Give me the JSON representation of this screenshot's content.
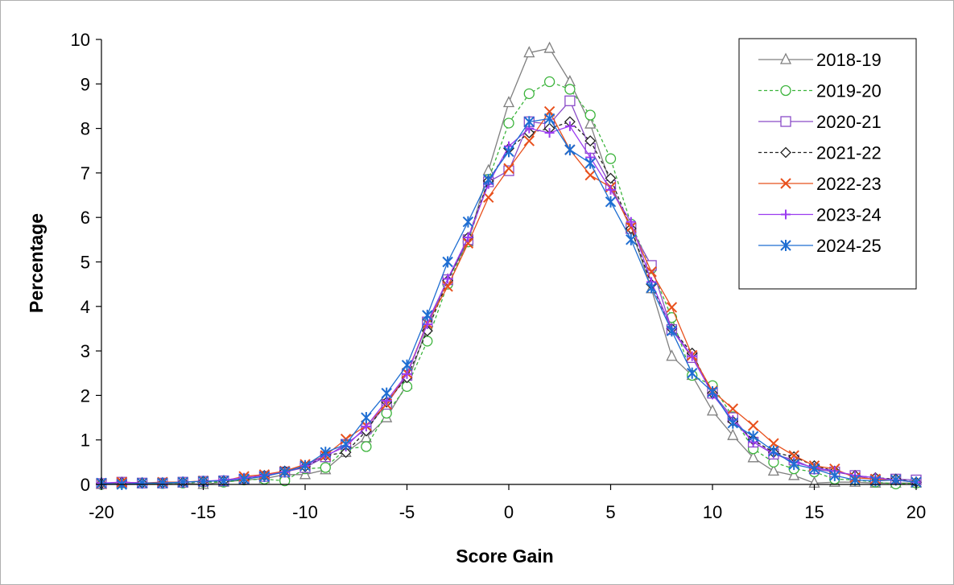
{
  "chart_data": {
    "type": "line",
    "title": "",
    "xlabel": "Score Gain",
    "ylabel": "Percentage",
    "xlim": [
      -20,
      20
    ],
    "ylim": [
      0,
      10
    ],
    "x_ticks": [
      -20,
      -15,
      -10,
      -5,
      0,
      5,
      10,
      15,
      20
    ],
    "y_ticks": [
      0,
      1,
      2,
      3,
      4,
      5,
      6,
      7,
      8,
      9,
      10
    ],
    "grid": false,
    "legend_position": "top-right",
    "x": [
      -20,
      -19,
      -18,
      -17,
      -16,
      -15,
      -14,
      -13,
      -12,
      -11,
      -10,
      -9,
      -8,
      -7,
      -6,
      -5,
      -4,
      -3,
      -2,
      -1,
      0,
      1,
      2,
      3,
      4,
      5,
      6,
      7,
      8,
      9,
      10,
      11,
      12,
      13,
      14,
      15,
      16,
      17,
      18,
      19,
      20
    ],
    "series": [
      {
        "name": "2018-19",
        "color": "#7f7f7f",
        "dash": "solid",
        "marker": "triangle",
        "values": [
          0.0,
          0.02,
          0.02,
          0.02,
          0.03,
          0.0,
          0.05,
          0.1,
          0.13,
          0.22,
          0.22,
          0.33,
          0.72,
          1.05,
          1.5,
          2.25,
          3.55,
          4.6,
          5.45,
          7.05,
          8.58,
          9.7,
          9.8,
          9.05,
          8.1,
          6.75,
          5.75,
          4.4,
          2.88,
          2.45,
          1.65,
          1.1,
          0.6,
          0.3,
          0.2,
          0.03,
          0.05,
          0.05,
          0.03,
          0.03,
          0.03
        ]
      },
      {
        "name": "2019-20",
        "color": "#3cb43c",
        "dash": "dashed",
        "marker": "circle",
        "values": [
          0.0,
          0.03,
          0.03,
          0.02,
          0.03,
          0.05,
          0.05,
          0.1,
          0.12,
          0.08,
          0.35,
          0.38,
          0.8,
          0.85,
          1.6,
          2.2,
          3.22,
          4.5,
          5.45,
          6.85,
          8.12,
          8.78,
          9.05,
          8.88,
          8.3,
          7.32,
          5.85,
          4.85,
          3.75,
          2.45,
          2.22,
          1.52,
          0.8,
          0.5,
          0.35,
          0.28,
          0.12,
          0.1,
          0.05,
          0.01,
          0.03
        ]
      },
      {
        "name": "2020-21",
        "color": "#8a4cc8",
        "dash": "solid",
        "marker": "square",
        "values": [
          0.02,
          0.05,
          0.03,
          0.03,
          0.05,
          0.07,
          0.08,
          0.12,
          0.18,
          0.28,
          0.38,
          0.62,
          0.9,
          1.25,
          1.8,
          2.45,
          3.65,
          4.6,
          5.5,
          6.8,
          7.05,
          8.15,
          8.1,
          8.62,
          7.55,
          6.72,
          5.75,
          4.92,
          3.48,
          2.85,
          2.05,
          1.5,
          0.95,
          0.68,
          0.55,
          0.35,
          0.28,
          0.2,
          0.1,
          0.12,
          0.1
        ]
      },
      {
        "name": "2021-22",
        "color": "#222222",
        "dash": "dashed",
        "marker": "diamond",
        "values": [
          0.02,
          0.05,
          0.03,
          0.03,
          0.05,
          0.07,
          0.08,
          0.12,
          0.2,
          0.3,
          0.4,
          0.65,
          0.72,
          1.2,
          1.85,
          2.4,
          3.45,
          4.58,
          5.55,
          6.82,
          7.55,
          7.9,
          8.0,
          8.15,
          7.72,
          6.88,
          5.75,
          4.5,
          3.5,
          2.95,
          2.05,
          1.42,
          1.0,
          0.72,
          0.62,
          0.42,
          0.3,
          0.2,
          0.15,
          0.12,
          0.05
        ]
      },
      {
        "name": "2022-23",
        "color": "#e8501c",
        "dash": "solid",
        "marker": "x",
        "values": [
          0.02,
          0.05,
          0.03,
          0.05,
          0.05,
          0.08,
          0.08,
          0.18,
          0.22,
          0.3,
          0.45,
          0.65,
          1.02,
          1.32,
          1.8,
          2.5,
          3.62,
          4.45,
          5.42,
          6.45,
          7.1,
          7.72,
          8.38,
          7.52,
          6.95,
          6.68,
          5.78,
          4.78,
          3.98,
          2.9,
          2.1,
          1.7,
          1.32,
          0.92,
          0.65,
          0.42,
          0.35,
          0.15,
          0.12,
          0.1,
          0.05
        ]
      },
      {
        "name": "2023-24",
        "color": "#9b3cf0",
        "dash": "solid",
        "marker": "plus",
        "values": [
          0.03,
          0.05,
          0.03,
          0.03,
          0.05,
          0.07,
          0.1,
          0.15,
          0.2,
          0.28,
          0.42,
          0.65,
          0.85,
          1.3,
          1.88,
          2.48,
          3.6,
          4.62,
          5.55,
          6.75,
          7.6,
          8.0,
          7.9,
          8.05,
          7.35,
          6.62,
          5.9,
          4.55,
          3.5,
          2.88,
          2.02,
          1.45,
          0.95,
          0.7,
          0.5,
          0.38,
          0.3,
          0.2,
          0.15,
          0.1,
          0.05
        ]
      },
      {
        "name": "2024-25",
        "color": "#1e6ed2",
        "dash": "solid",
        "marker": "asterisk",
        "values": [
          0.03,
          0.0,
          0.03,
          0.03,
          0.05,
          0.07,
          0.08,
          0.12,
          0.18,
          0.28,
          0.42,
          0.72,
          0.9,
          1.5,
          2.05,
          2.68,
          3.8,
          5.0,
          5.9,
          6.85,
          7.48,
          8.15,
          8.22,
          7.52,
          7.22,
          6.35,
          5.5,
          4.42,
          3.45,
          2.5,
          2.08,
          1.38,
          1.08,
          0.75,
          0.45,
          0.35,
          0.2,
          0.1,
          0.08,
          0.1,
          0.05
        ]
      }
    ]
  }
}
